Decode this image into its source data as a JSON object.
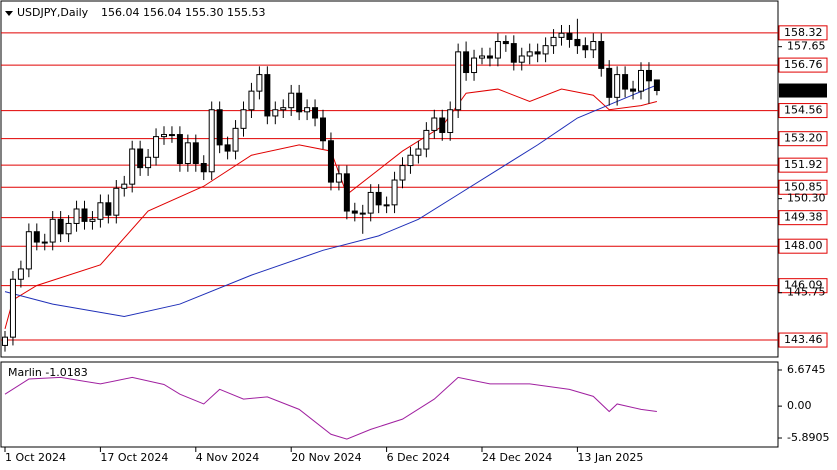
{
  "chart_data": [
    {
      "type": "candlestick",
      "title": "USDJPY,Daily",
      "header": "156.04 156.04 155.30 155.53",
      "ylim": [
        142.64,
        159.86
      ],
      "yticks": [
        157.65,
        {
          "value": 150.3,
          "label": "150.30"
        },
        145.75
      ],
      "levels": [
        158.32,
        156.76,
        154.56,
        {
          "value": 153.2,
          "label": "153.20"
        },
        151.92,
        150.85,
        149.38,
        {
          "value": 148.0,
          "label": "148.00"
        },
        146.09,
        143.46
      ],
      "level_color": "#e00000",
      "last_price": 155.53,
      "x_labels": [
        {
          "value": 0,
          "label": "1 Oct 2024"
        },
        {
          "value": 12,
          "label": "17 Oct 2024"
        },
        {
          "value": 24,
          "label": "4 Nov 2024"
        },
        {
          "value": 36,
          "label": "20 Nov 2024"
        },
        {
          "value": 48,
          "label": "6 Dec 2024"
        },
        {
          "value": 60,
          "label": "24 Dec 2024"
        },
        {
          "value": 72,
          "label": "13 Jan 2025"
        }
      ],
      "candles": [
        [
          143.2,
          143.9,
          142.9,
          143.6
        ],
        [
          143.6,
          146.8,
          143.2,
          146.4
        ],
        [
          146.4,
          147.3,
          146.0,
          146.9
        ],
        [
          146.9,
          149.1,
          146.5,
          148.7
        ],
        [
          148.7,
          149.1,
          147.8,
          148.2
        ],
        [
          148.2,
          148.6,
          147.8,
          148.2
        ],
        [
          148.2,
          149.7,
          147.8,
          149.3
        ],
        [
          149.3,
          149.7,
          148.2,
          148.6
        ],
        [
          148.6,
          149.5,
          148.2,
          149.1
        ],
        [
          149.1,
          150.2,
          148.7,
          149.8
        ],
        [
          149.8,
          150.2,
          148.8,
          149.2
        ],
        [
          149.2,
          149.7,
          148.8,
          149.3
        ],
        [
          149.3,
          150.5,
          148.9,
          150.1
        ],
        [
          150.1,
          150.5,
          149.1,
          149.5
        ],
        [
          149.5,
          151.2,
          149.1,
          150.8
        ],
        [
          150.8,
          151.4,
          150.4,
          151.0
        ],
        [
          151.0,
          153.1,
          150.6,
          152.7
        ],
        [
          152.7,
          153.1,
          151.4,
          151.8
        ],
        [
          151.8,
          152.7,
          151.4,
          152.3
        ],
        [
          152.3,
          153.7,
          151.9,
          153.3
        ],
        [
          153.3,
          153.8,
          152.9,
          153.4
        ],
        [
          153.4,
          153.8,
          153.0,
          153.4
        ],
        [
          153.4,
          153.8,
          151.6,
          152.0
        ],
        [
          152.0,
          153.4,
          151.6,
          153.0
        ],
        [
          153.0,
          153.4,
          151.6,
          152.0
        ],
        [
          152.0,
          152.4,
          151.2,
          151.6
        ],
        [
          151.6,
          155.0,
          151.2,
          154.6
        ],
        [
          154.6,
          155.0,
          152.5,
          152.9
        ],
        [
          152.9,
          153.3,
          152.2,
          152.6
        ],
        [
          152.6,
          154.1,
          152.2,
          153.7
        ],
        [
          153.7,
          155.0,
          153.3,
          154.6
        ],
        [
          154.6,
          155.9,
          154.2,
          155.5
        ],
        [
          155.5,
          156.7,
          155.1,
          156.3
        ],
        [
          156.3,
          156.7,
          153.9,
          154.3
        ],
        [
          154.3,
          155.0,
          153.9,
          154.6
        ],
        [
          154.6,
          155.1,
          154.2,
          154.7
        ],
        [
          154.7,
          155.8,
          154.3,
          155.4
        ],
        [
          155.4,
          155.8,
          154.1,
          154.5
        ],
        [
          154.5,
          155.1,
          154.1,
          154.7
        ],
        [
          154.7,
          155.1,
          153.8,
          154.2
        ],
        [
          154.2,
          154.6,
          152.7,
          153.1
        ],
        [
          153.1,
          153.5,
          150.7,
          151.1
        ],
        [
          151.1,
          151.9,
          150.7,
          151.5
        ],
        [
          151.5,
          151.9,
          149.3,
          149.7
        ],
        [
          149.7,
          150.1,
          149.2,
          149.6
        ],
        [
          149.6,
          150.0,
          148.6,
          149.6
        ],
        [
          149.6,
          151.0,
          149.2,
          150.6
        ],
        [
          150.6,
          151.0,
          149.6,
          150.0
        ],
        [
          150.0,
          150.4,
          149.6,
          150.0
        ],
        [
          150.0,
          151.6,
          149.6,
          151.2
        ],
        [
          151.2,
          152.3,
          150.8,
          151.9
        ],
        [
          151.9,
          152.8,
          151.5,
          152.4
        ],
        [
          152.4,
          153.1,
          152.0,
          152.7
        ],
        [
          152.7,
          154.0,
          152.3,
          153.6
        ],
        [
          153.6,
          154.6,
          153.2,
          154.2
        ],
        [
          154.2,
          154.6,
          153.1,
          153.5
        ],
        [
          153.5,
          155.0,
          153.1,
          154.6
        ],
        [
          154.6,
          157.8,
          154.2,
          157.4
        ],
        [
          157.4,
          157.9,
          156.0,
          156.4
        ],
        [
          156.4,
          157.5,
          156.0,
          157.1
        ],
        [
          157.1,
          157.6,
          156.8,
          157.2
        ],
        [
          157.2,
          157.6,
          156.7,
          157.1
        ],
        [
          157.1,
          158.3,
          156.7,
          157.9
        ],
        [
          157.9,
          158.2,
          157.4,
          157.8
        ],
        [
          157.8,
          158.2,
          156.5,
          156.9
        ],
        [
          156.9,
          157.6,
          156.5,
          157.2
        ],
        [
          157.2,
          157.8,
          156.8,
          157.4
        ],
        [
          157.4,
          157.8,
          156.9,
          157.3
        ],
        [
          157.3,
          158.1,
          156.9,
          157.7
        ],
        [
          157.7,
          158.5,
          157.3,
          158.1
        ],
        [
          158.1,
          158.7,
          157.7,
          158.3
        ],
        [
          158.3,
          158.7,
          157.6,
          158.0
        ],
        [
          158.0,
          159.0,
          157.3,
          157.7
        ],
        [
          157.7,
          158.1,
          157.1,
          157.5
        ],
        [
          157.5,
          158.3,
          157.1,
          157.9
        ],
        [
          157.9,
          158.3,
          156.2,
          156.6
        ],
        [
          156.6,
          157.0,
          154.8,
          155.2
        ],
        [
          155.2,
          156.7,
          154.8,
          156.3
        ],
        [
          156.3,
          156.7,
          155.2,
          155.6
        ],
        [
          155.6,
          156.0,
          155.1,
          155.5
        ],
        [
          155.5,
          156.9,
          155.1,
          156.5
        ],
        [
          156.5,
          156.9,
          154.9,
          156.0
        ],
        [
          156.04,
          156.04,
          155.3,
          155.53
        ]
      ],
      "series": [
        {
          "color": "#e00000",
          "x": [
            0,
            1,
            4,
            12,
            18,
            25,
            31,
            37,
            41,
            43,
            50,
            55,
            58,
            62,
            66,
            70,
            74,
            76,
            80,
            82
          ],
          "values": [
            144.0,
            145.4,
            146.1,
            147.1,
            149.7,
            150.9,
            152.4,
            152.9,
            152.6,
            150.5,
            152.6,
            153.8,
            155.4,
            155.6,
            155.0,
            155.6,
            155.3,
            154.6,
            154.8,
            155.0
          ]
        },
        {
          "color": "#1f2fb8",
          "x": [
            0,
            6,
            15,
            22,
            31,
            40,
            47,
            52,
            57,
            62,
            67,
            72,
            77,
            82
          ],
          "values": [
            145.8,
            145.2,
            144.6,
            145.2,
            146.6,
            147.8,
            148.5,
            149.3,
            150.5,
            151.7,
            152.9,
            154.2,
            155.0,
            155.8
          ]
        }
      ]
    },
    {
      "type": "line",
      "title": "Marlin -1.0183",
      "ylim": [
        -7.55,
        8.15
      ],
      "yticks": [
        6.6745,
        {
          "value": 0,
          "label": "0.00"
        },
        -5.8905
      ],
      "series": [
        {
          "color": "#a020a0",
          "x": [
            0,
            3,
            7,
            12,
            16,
            20,
            22,
            25,
            27,
            30,
            33,
            37,
            41,
            43,
            46,
            50,
            54,
            57,
            61,
            66,
            71,
            74,
            76,
            77,
            80,
            82
          ],
          "values": [
            2.2,
            5.0,
            5.3,
            4.1,
            5.3,
            4.0,
            2.2,
            0.4,
            3.1,
            1.3,
            1.7,
            -0.6,
            -5.2,
            -6.1,
            -4.3,
            -2.4,
            1.3,
            5.3,
            4.1,
            4.1,
            3.1,
            1.8,
            -1.0,
            0.4,
            -0.6,
            -1.0
          ]
        }
      ]
    }
  ]
}
